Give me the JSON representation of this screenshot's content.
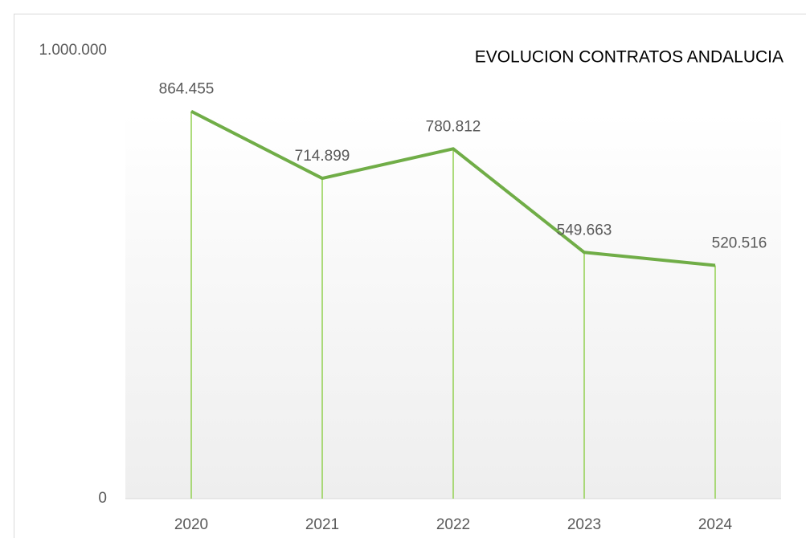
{
  "chart_data": {
    "type": "line",
    "title": "EVOLUCION CONTRATOS ANDALUCIA",
    "categories": [
      "2020",
      "2021",
      "2022",
      "2023",
      "2024"
    ],
    "values": [
      864455,
      714899,
      780812,
      549663,
      520516
    ],
    "value_labels": [
      "864.455",
      "714.899",
      "780.812",
      "549.663",
      "520.516"
    ],
    "color": "#70ad47",
    "drop_line_color": "#92d050",
    "ylim": [
      0,
      1000000
    ],
    "yticks": [
      0,
      {
        "value": 1000000,
        "label": "1.000.000"
      }
    ],
    "grid": false
  }
}
